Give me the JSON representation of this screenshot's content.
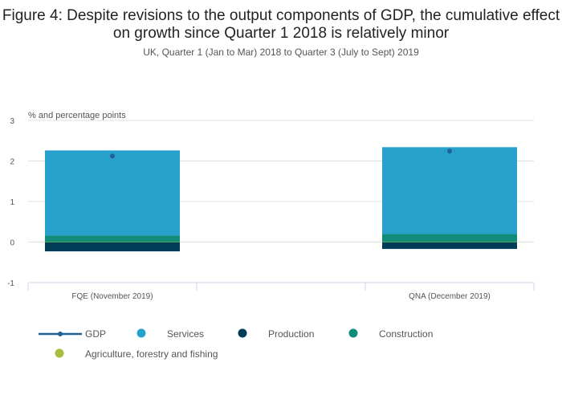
{
  "chart_data": {
    "type": "bar",
    "stacked": true,
    "title": "Figure 4: Despite revisions to the output components of GDP, the cumulative effect on growth since Quarter 1 2018 is relatively minor",
    "subtitle": "UK, Quarter 1 (Jan to Mar) 2018 to Quarter 3 (July to Sept) 2019",
    "ylabel": "% and percentage points",
    "xlabel": "",
    "ylim": [
      -1,
      3
    ],
    "yticks": [
      3,
      2,
      1,
      0,
      -1
    ],
    "grid": true,
    "legend_position": "bottom",
    "categories": [
      "FQE (November 2019)",
      "QNA (December 2019)"
    ],
    "series": [
      {
        "name": "Services",
        "type": "bar",
        "color": "#27a0cc",
        "values": [
          2.1,
          2.14
        ]
      },
      {
        "name": "Production",
        "type": "bar",
        "color": "#003c57",
        "values": [
          -0.22,
          -0.16
        ]
      },
      {
        "name": "Construction",
        "type": "bar",
        "color": "#118c7b",
        "values": [
          0.16,
          0.2
        ]
      },
      {
        "name": "Agriculture, forestry and fishing",
        "type": "bar",
        "color": "#a8bd3a",
        "values": [
          -0.01,
          -0.01
        ]
      },
      {
        "name": "GDP",
        "type": "line-marker",
        "color": "#206095",
        "values": [
          2.12,
          2.24
        ]
      }
    ],
    "legend": [
      "GDP",
      "Services",
      "Production",
      "Construction",
      "Agriculture, forestry and fishing"
    ]
  }
}
